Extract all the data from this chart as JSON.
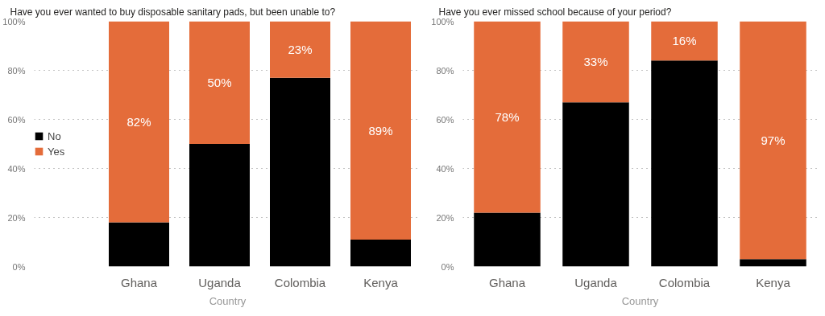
{
  "chart_data": [
    {
      "type": "bar",
      "title": "Have you ever wanted to buy disposable sanitary pads, but been unable to?",
      "xlabel": "Country",
      "categories": [
        "Ghana",
        "Uganda",
        "Colombia",
        "Kenya"
      ],
      "stacked": true,
      "series": [
        {
          "name": "No",
          "color": "#000000",
          "values": [
            18,
            50,
            77,
            11
          ]
        },
        {
          "name": "Yes",
          "color": "#e46c3a",
          "values": [
            82,
            50,
            23,
            89
          ],
          "value_labels": [
            "82%",
            "50%",
            "23%",
            "89%"
          ]
        }
      ],
      "ylim": [
        0,
        100
      ],
      "yticks": [
        {
          "value": 0,
          "label": "0%"
        },
        {
          "value": 20,
          "label": "20%"
        },
        {
          "value": 40,
          "label": "40%"
        },
        {
          "value": 60,
          "label": "60%"
        },
        {
          "value": 80,
          "label": "80%"
        },
        {
          "value": 100,
          "label": "100%"
        }
      ],
      "grid": "y",
      "legend": "left"
    },
    {
      "type": "bar",
      "title": "Have you ever missed school because of your period?",
      "xlabel": "Country",
      "categories": [
        "Ghana",
        "Uganda",
        "Colombia",
        "Kenya"
      ],
      "stacked": true,
      "series": [
        {
          "color": "#000000",
          "values": [
            22,
            67,
            84,
            3
          ]
        },
        {
          "color": "#e46c3a",
          "values": [
            78,
            33,
            16,
            97
          ],
          "value_labels": [
            "78%",
            "33%",
            "16%",
            "97%"
          ]
        }
      ],
      "ylim": [
        0,
        100
      ],
      "yticks": [
        {
          "value": 0,
          "label": "0%"
        },
        {
          "value": 20,
          "label": "20%"
        },
        {
          "value": 40,
          "label": "40%"
        },
        {
          "value": 60,
          "label": "60%"
        },
        {
          "value": 80,
          "label": "80%"
        },
        {
          "value": 100,
          "label": "100%"
        }
      ],
      "grid": "y"
    }
  ]
}
